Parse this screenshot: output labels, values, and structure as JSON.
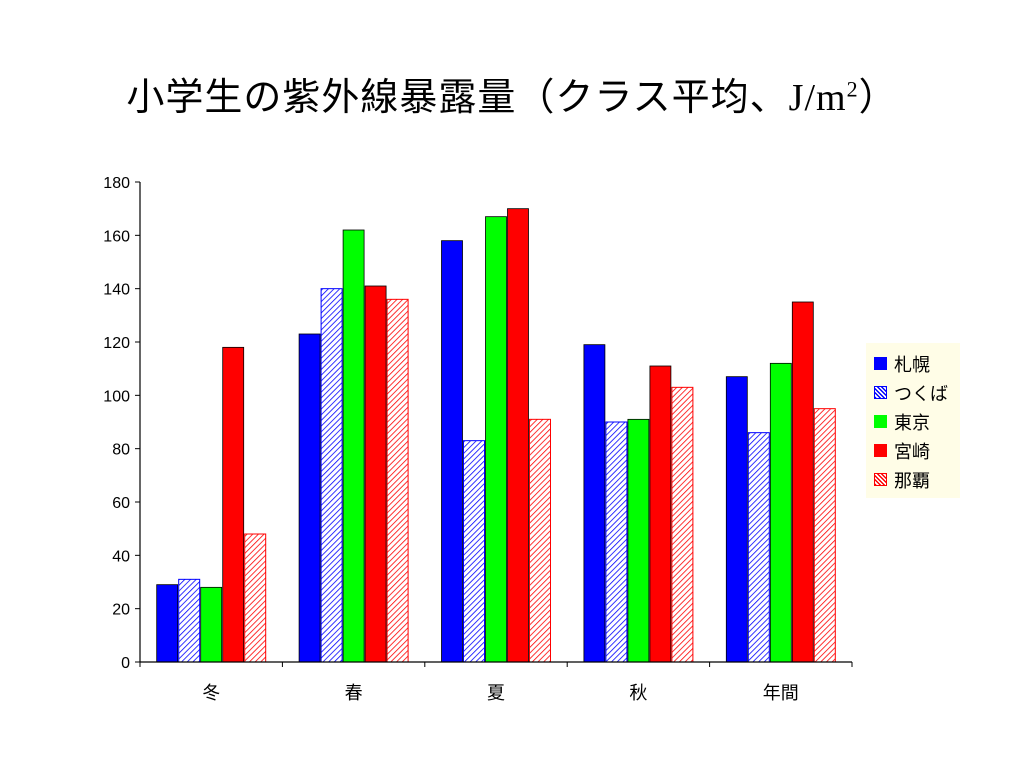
{
  "title": {
    "main": "小学生の紫外線暴露量（クラス平均、",
    "unit": "J/m",
    "unit_sup": "2",
    "close": "）"
  },
  "chart_data": {
    "type": "bar",
    "categories": [
      "冬",
      "春",
      "夏",
      "秋",
      "年間"
    ],
    "series": [
      {
        "name": "札幌",
        "values": [
          29,
          123,
          158,
          119,
          107
        ],
        "color": "#0000ff",
        "pattern": "solid"
      },
      {
        "name": "つくば",
        "values": [
          31,
          140,
          83,
          90,
          86
        ],
        "color": "#0000ff",
        "pattern": "hatched"
      },
      {
        "name": "東京",
        "values": [
          28,
          162,
          167,
          91,
          112
        ],
        "color": "#00ff00",
        "pattern": "solid"
      },
      {
        "name": "宮崎",
        "values": [
          118,
          141,
          170,
          111,
          135
        ],
        "color": "#ff0000",
        "pattern": "solid"
      },
      {
        "name": "那覇",
        "values": [
          48,
          136,
          91,
          103,
          95
        ],
        "color": "#ff0000",
        "pattern": "hatched"
      }
    ],
    "ylim": [
      0,
      180
    ],
    "yticks": [
      0,
      20,
      40,
      60,
      80,
      100,
      120,
      140,
      160,
      180
    ],
    "grid": false,
    "legend_position": "right"
  }
}
